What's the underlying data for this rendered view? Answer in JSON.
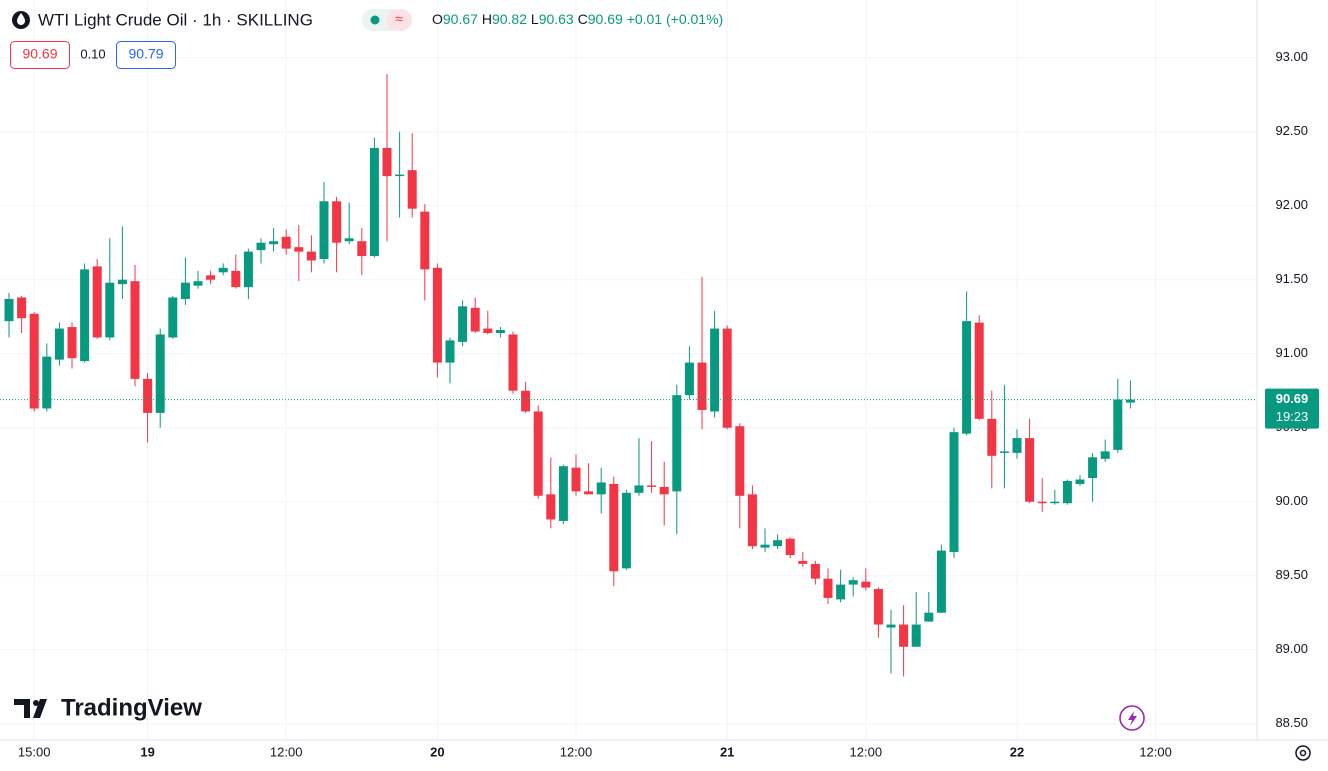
{
  "toolbar": {
    "symbol": "WTI Light Crude Oil · 1h · SKILLING",
    "ohlc": [
      {
        "key": "O",
        "value": "90.67"
      },
      {
        "key": "H",
        "value": "90.82"
      },
      {
        "key": "L",
        "value": "90.63"
      },
      {
        "key": "C",
        "value": "90.69"
      }
    ],
    "change": "+0.01 (+0.01%)",
    "bid": "90.69",
    "spread": "0.10",
    "ask": "90.79"
  },
  "watermark": "TradingView",
  "chart_data": {
    "type": "candlestick",
    "up_color": "#089981",
    "down_color": "#f23645",
    "grid": true,
    "categories": [
      null,
      null,
      "15:00",
      null,
      null,
      null,
      null,
      null,
      null,
      null,
      null,
      "19",
      null,
      null,
      null,
      null,
      null,
      null,
      null,
      null,
      null,
      null,
      "12:00",
      null,
      null,
      null,
      null,
      null,
      null,
      null,
      null,
      null,
      null,
      null,
      "20",
      null,
      null,
      null,
      null,
      null,
      null,
      null,
      null,
      null,
      null,
      "12:00",
      null,
      null,
      null,
      null,
      null,
      null,
      null,
      null,
      null,
      null,
      null,
      "21",
      null,
      null,
      null,
      null,
      null,
      null,
      null,
      null,
      null,
      null,
      "12:00",
      null,
      null,
      null,
      null,
      null,
      null,
      null,
      null,
      null,
      null,
      null,
      "22",
      null,
      null,
      null,
      null,
      null,
      null,
      null,
      null,
      null,
      null,
      "12:00"
    ],
    "open": [
      91.22,
      91.38,
      91.27,
      90.63,
      90.96,
      91.18,
      90.95,
      91.59,
      91.11,
      91.47,
      91.49,
      90.83,
      90.6,
      91.11,
      91.37,
      91.46,
      91.53,
      91.55,
      91.56,
      91.45,
      91.7,
      91.74,
      91.79,
      91.72,
      91.69,
      91.64,
      92.03,
      91.76,
      91.76,
      91.66,
      92.39,
      92.2,
      92.24,
      91.96,
      91.58,
      90.94,
      91.08,
      91.31,
      91.17,
      91.14,
      91.13,
      90.75,
      90.61,
      90.05,
      89.87,
      90.23,
      90.07,
      90.05,
      90.12,
      89.55,
      90.06,
      90.11,
      90.1,
      90.07,
      90.72,
      90.94,
      90.61,
      91.17,
      90.51,
      90.05,
      89.69,
      89.7,
      89.75,
      89.6,
      89.58,
      89.48,
      89.34,
      89.44,
      89.46,
      89.41,
      89.15,
      89.17,
      89.02,
      89.19,
      89.25,
      89.66,
      90.46,
      91.21,
      90.56,
      90.33,
      90.33,
      90.43,
      90.0,
      89.99,
      89.99,
      90.12,
      90.16,
      90.29,
      90.35,
      90.67,
      null,
      null
    ],
    "high": [
      91.41,
      91.39,
      91.28,
      91.07,
      91.21,
      91.21,
      91.61,
      91.64,
      91.78,
      91.86,
      91.6,
      90.87,
      91.17,
      91.39,
      91.65,
      91.56,
      91.56,
      91.61,
      91.67,
      91.71,
      91.78,
      91.85,
      91.84,
      91.87,
      91.8,
      92.16,
      92.06,
      92.02,
      91.85,
      92.46,
      92.89,
      92.5,
      92.49,
      92.01,
      91.61,
      91.11,
      91.36,
      91.38,
      91.29,
      91.18,
      91.15,
      90.81,
      90.65,
      90.3,
      90.25,
      90.32,
      90.26,
      90.23,
      90.17,
      90.08,
      90.43,
      90.41,
      90.27,
      90.79,
      91.05,
      91.52,
      91.29,
      91.19,
      90.53,
      90.11,
      89.82,
      89.78,
      89.76,
      89.66,
      89.6,
      89.55,
      89.54,
      89.49,
      89.55,
      89.42,
      89.27,
      89.3,
      89.39,
      89.39,
      89.71,
      90.5,
      91.42,
      91.26,
      90.75,
      90.79,
      90.49,
      90.56,
      90.16,
      90.08,
      90.15,
      90.18,
      90.33,
      90.42,
      90.83,
      90.82,
      null,
      null
    ],
    "low": [
      91.11,
      91.14,
      90.61,
      90.61,
      90.92,
      90.9,
      90.94,
      91.1,
      91.09,
      91.37,
      90.78,
      90.4,
      90.5,
      91.1,
      91.33,
      91.44,
      91.47,
      91.53,
      91.44,
      91.37,
      91.61,
      91.69,
      91.67,
      91.49,
      91.55,
      91.61,
      91.55,
      91.74,
      91.53,
      91.65,
      91.76,
      91.92,
      91.92,
      91.36,
      90.84,
      90.8,
      91.05,
      91.14,
      91.13,
      91.11,
      90.73,
      90.6,
      90.02,
      89.82,
      89.85,
      90.04,
      90.05,
      89.92,
      89.43,
      89.54,
      90.04,
      90.06,
      89.84,
      89.78,
      90.69,
      90.49,
      90.57,
      90.49,
      89.82,
      89.68,
      89.66,
      89.68,
      89.62,
      89.56,
      89.44,
      89.31,
      89.32,
      89.36,
      89.4,
      89.08,
      88.84,
      88.82,
      89.02,
      89.19,
      89.25,
      89.62,
      90.45,
      90.55,
      90.09,
      90.09,
      90.29,
      89.99,
      89.93,
      89.98,
      89.98,
      90.11,
      90.0,
      90.27,
      90.33,
      90.63,
      null,
      null
    ],
    "close": [
      91.37,
      91.24,
      90.63,
      90.98,
      91.17,
      90.97,
      91.57,
      91.11,
      91.48,
      91.5,
      90.83,
      90.6,
      91.13,
      91.38,
      91.48,
      91.49,
      91.5,
      91.58,
      91.45,
      91.69,
      91.75,
      91.76,
      91.71,
      91.69,
      91.63,
      92.03,
      91.75,
      91.78,
      91.66,
      92.39,
      92.2,
      92.21,
      91.98,
      91.57,
      90.94,
      91.09,
      91.32,
      91.15,
      91.14,
      91.16,
      90.75,
      90.61,
      90.04,
      89.88,
      90.24,
      90.07,
      90.05,
      90.13,
      89.53,
      90.06,
      90.11,
      90.1,
      90.05,
      90.72,
      90.94,
      90.62,
      91.17,
      90.5,
      90.04,
      89.7,
      89.71,
      89.74,
      89.64,
      89.58,
      89.48,
      89.35,
      89.44,
      89.47,
      89.42,
      89.17,
      89.17,
      89.02,
      89.17,
      89.25,
      89.67,
      90.47,
      91.22,
      90.56,
      90.31,
      90.34,
      90.43,
      90.0,
      89.99,
      90.0,
      90.14,
      90.15,
      90.3,
      90.34,
      90.69,
      90.69,
      null,
      null
    ],
    "countdown": "19:23",
    "ylim": [
      88.39,
      93.39
    ],
    "yticks": [
      {
        "value": 88.5,
        "label": "88.50"
      },
      {
        "value": 89,
        "label": "89.00"
      },
      {
        "value": 89.5,
        "label": "89.50"
      },
      {
        "value": 90,
        "label": "90.00"
      },
      {
        "value": 90.5,
        "label": "90.50"
      },
      {
        "value": 91,
        "label": "91.00"
      },
      {
        "value": 91.5,
        "label": "91.50"
      },
      {
        "value": 92,
        "label": "92.00"
      },
      {
        "value": 92.5,
        "label": "92.50"
      },
      {
        "value": 93,
        "label": "93.00"
      }
    ]
  }
}
